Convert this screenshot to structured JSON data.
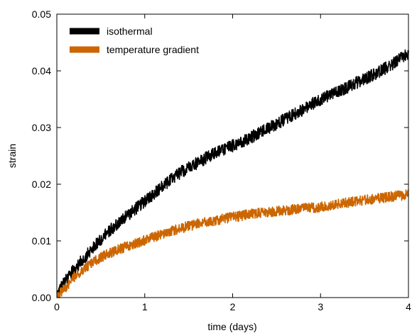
{
  "chart_data": {
    "type": "line",
    "xlabel": "time (days)",
    "ylabel": "strain",
    "xlim": [
      0,
      4
    ],
    "ylim": [
      0,
      0.05
    ],
    "xticks": [
      0,
      1,
      2,
      3,
      4
    ],
    "xtick_labels": [
      "0",
      "1",
      "2",
      "3",
      "4"
    ],
    "yticks": [
      0.0,
      0.01,
      0.02,
      0.03,
      0.04,
      0.05
    ],
    "ytick_labels": [
      "0.00",
      "0.01",
      "0.02",
      "0.03",
      "0.04",
      "0.05"
    ],
    "grid": false,
    "legend_position": "top-left",
    "series": [
      {
        "name": "isothermal",
        "color": "#000000",
        "x": [
          0,
          0.05,
          0.1,
          0.15,
          0.2,
          0.3,
          0.4,
          0.5,
          0.6,
          0.7,
          0.8,
          0.9,
          1.0,
          1.2,
          1.4,
          1.6,
          1.8,
          2.0,
          2.2,
          2.4,
          2.6,
          2.8,
          3.0,
          3.2,
          3.4,
          3.6,
          3.8,
          4.0
        ],
        "y": [
          0.0005,
          0.002,
          0.003,
          0.004,
          0.005,
          0.0068,
          0.0085,
          0.0103,
          0.0118,
          0.0132,
          0.0145,
          0.0157,
          0.017,
          0.0196,
          0.022,
          0.0238,
          0.0255,
          0.0268,
          0.0282,
          0.0298,
          0.0315,
          0.0332,
          0.035,
          0.0363,
          0.0378,
          0.0393,
          0.041,
          0.043
        ]
      },
      {
        "name": "temperature gradient",
        "color": "#cc6600",
        "x": [
          0,
          0.05,
          0.1,
          0.15,
          0.2,
          0.3,
          0.4,
          0.5,
          0.6,
          0.7,
          0.8,
          0.9,
          1.0,
          1.2,
          1.4,
          1.6,
          1.8,
          2.0,
          2.2,
          2.4,
          2.6,
          2.8,
          3.0,
          3.2,
          3.4,
          3.6,
          3.8,
          4.0
        ],
        "y": [
          0.0003,
          0.001,
          0.0018,
          0.0028,
          0.0037,
          0.005,
          0.0062,
          0.0071,
          0.0078,
          0.0085,
          0.0091,
          0.0096,
          0.0101,
          0.0112,
          0.0122,
          0.013,
          0.0136,
          0.0142,
          0.0147,
          0.0151,
          0.0154,
          0.0157,
          0.016,
          0.0165,
          0.017,
          0.0174,
          0.0178,
          0.0182
        ]
      }
    ]
  }
}
